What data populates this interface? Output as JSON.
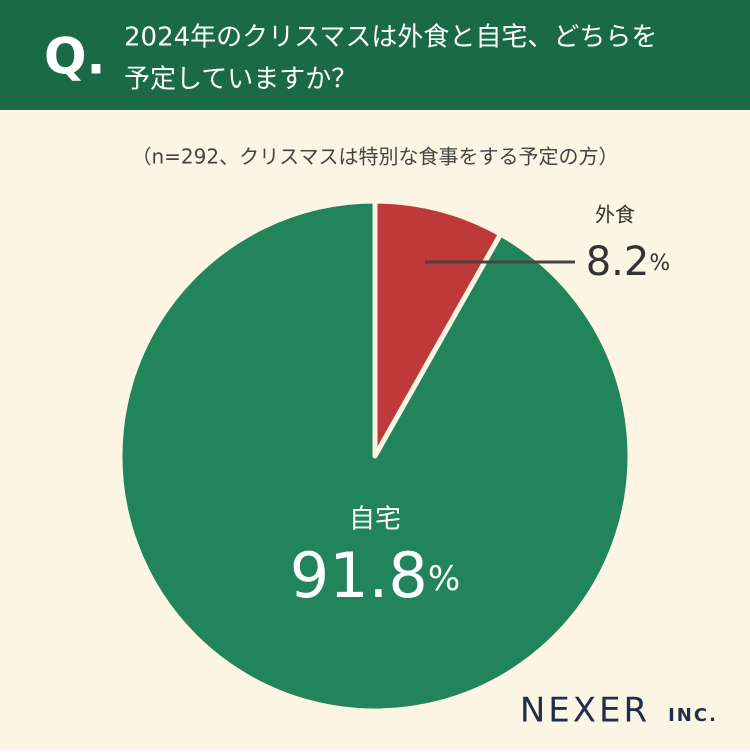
{
  "chart_data": {
    "type": "pie",
    "question_mark": "Q.",
    "title": [
      "2024年のクリスマスは外食と自宅、どちらを",
      "予定していますか？"
    ],
    "subtitle": "（n=292、クリスマスは特別な食事をする予定の方）",
    "categories": [
      "外食",
      "自宅"
    ],
    "values": [
      8.2,
      91.8
    ],
    "value_labels": [
      "8.2%",
      "91.8%"
    ],
    "colors": [
      "#c0393a",
      "#22845a"
    ],
    "logo": [
      "NEXER",
      "INC."
    ]
  }
}
